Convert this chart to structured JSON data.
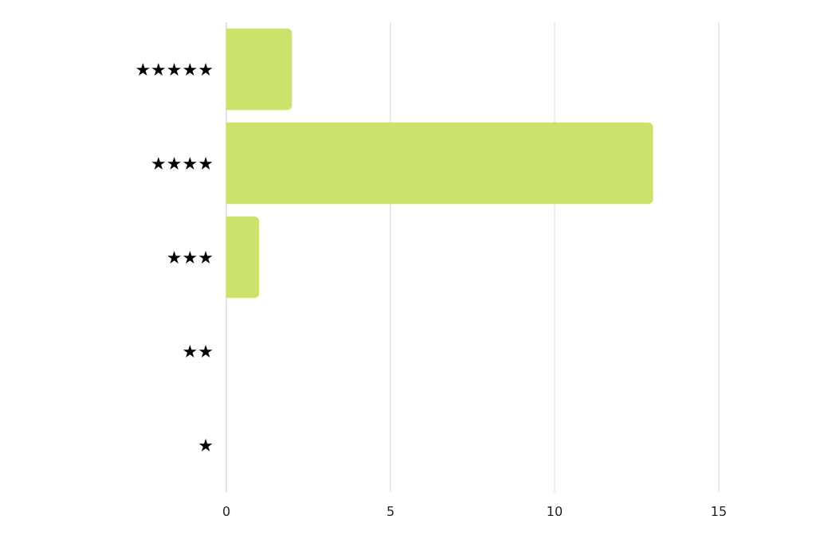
{
  "chart_data": {
    "type": "bar",
    "orientation": "horizontal",
    "categories": [
      "★★★★★",
      "★★★★",
      "★★★",
      "★★",
      "★"
    ],
    "values": [
      2,
      13,
      1,
      0,
      0
    ],
    "color": "#cbe36b",
    "xlim": [
      0,
      15
    ],
    "xticks": [
      0,
      5,
      10,
      15
    ],
    "grid": "x"
  }
}
